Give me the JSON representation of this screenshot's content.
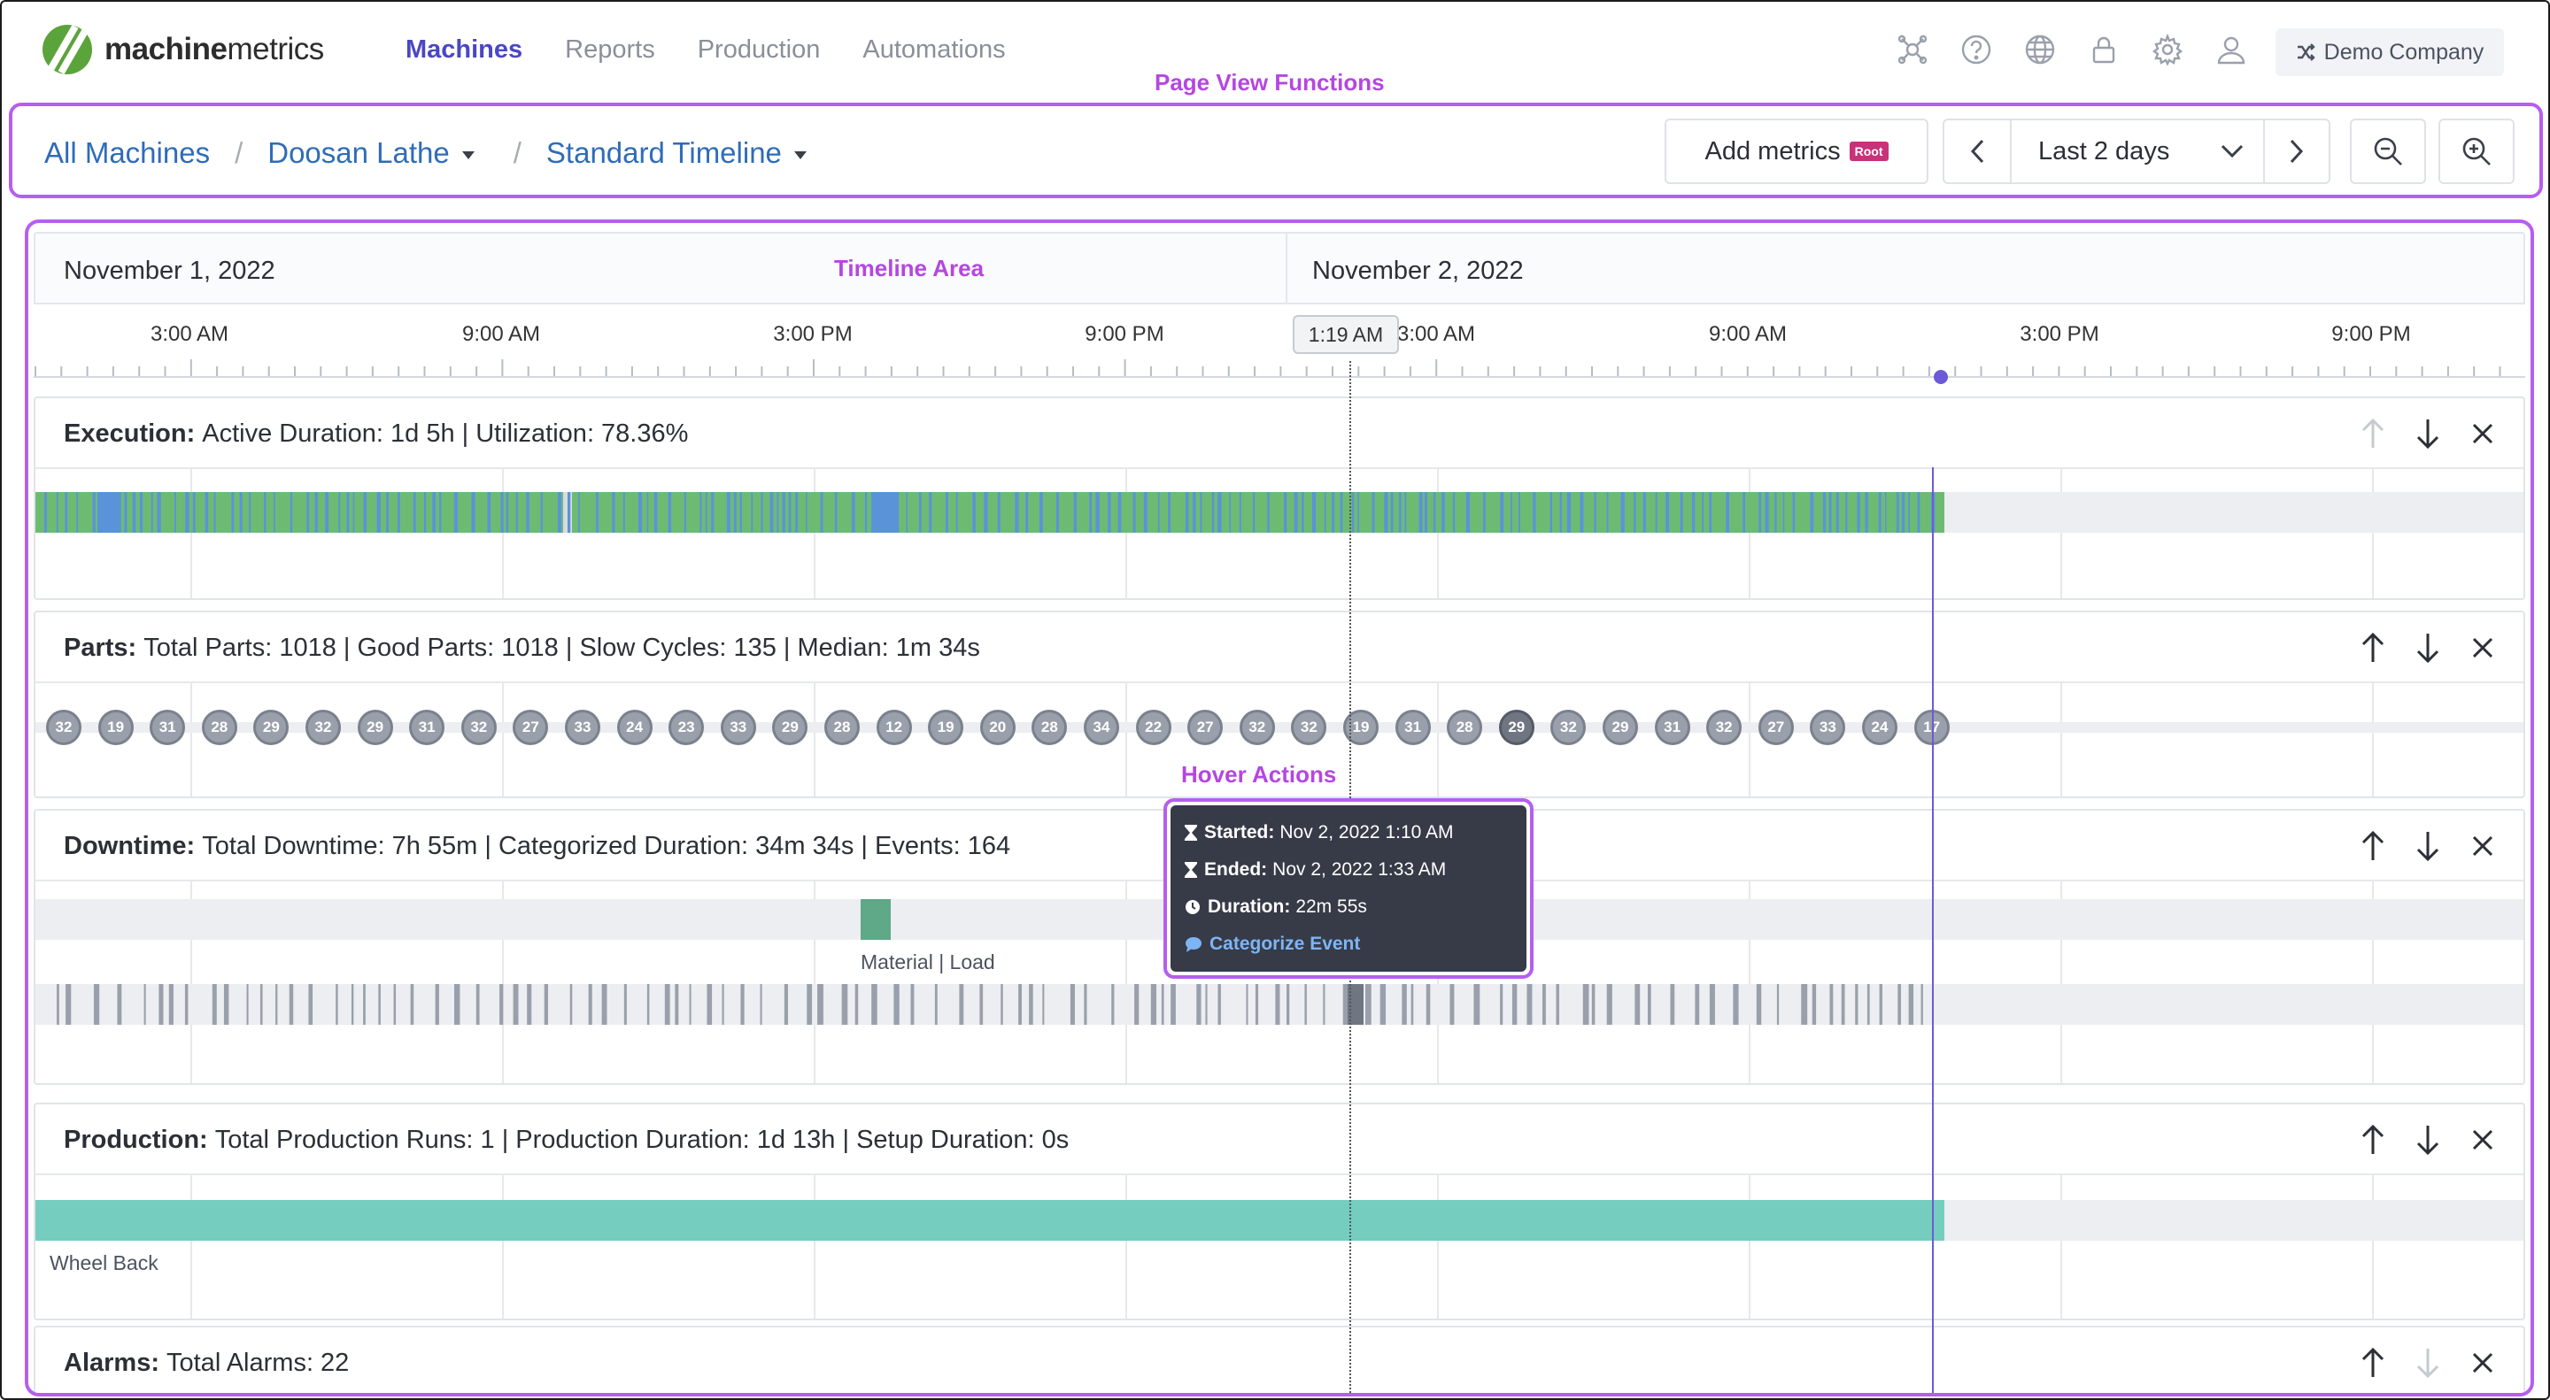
{
  "nav": {
    "logo_bold": "machine",
    "logo_regular": "metrics",
    "links": [
      "Machines",
      "Reports",
      "Production",
      "Automations"
    ],
    "active_link": "Machines",
    "icons": [
      "integrations-icon",
      "help-icon",
      "globe-icon",
      "lock-icon",
      "gear-icon",
      "user-icon"
    ],
    "company": "Demo Company"
  },
  "annotations": {
    "page_view": "Page View Functions",
    "timeline": "Timeline Area",
    "hover": "Hover Actions"
  },
  "breadcrumb": {
    "all": "All Machines",
    "machine": "Doosan Lathe",
    "view": "Standard Timeline",
    "separator": "/"
  },
  "toolbar": {
    "add_metrics": "Add metrics",
    "root_badge": "Root",
    "range": "Last 2 days"
  },
  "timeline": {
    "date1": "November 1, 2022",
    "date2": "November 2, 2022",
    "ticks": [
      "3:00 AM",
      "9:00 AM",
      "3:00 PM",
      "9:00 PM",
      "3:00 AM",
      "9:00 AM",
      "3:00 PM",
      "9:00 PM"
    ],
    "now_label": "1:19 AM"
  },
  "panels": {
    "execution": {
      "label": "Execution:",
      "stats": "Active Duration: 1d 5h  |  Utilization: 78.36%"
    },
    "parts": {
      "label": "Parts:",
      "stats": "Total Parts: 1018  |  Good Parts: 1018  |  Slow Cycles: 135  |  Median: 1m 34s",
      "bubbles": [
        "32",
        "19",
        "31",
        "28",
        "29",
        "32",
        "29",
        "31",
        "32",
        "27",
        "33",
        "24",
        "23",
        "33",
        "29",
        "28",
        "12",
        "19",
        "20",
        "28",
        "34",
        "22",
        "27",
        "32",
        "32",
        "19",
        "31",
        "28",
        "29",
        "32",
        "29",
        "31",
        "32",
        "27",
        "33",
        "24",
        "17"
      ]
    },
    "downtime": {
      "label": "Downtime:",
      "stats": "Total Downtime: 7h 55m  |  Categorized Duration: 34m 34s  |  Events: 164",
      "category_label": "Material | Load"
    },
    "production": {
      "label": "Production:",
      "stats": "Total Production Runs: 1  |  Production Duration: 1d 13h  |  Setup Duration: 0s",
      "run_label": "Wheel Back"
    },
    "alarms": {
      "label": "Alarms:",
      "stats": "Total Alarms: 22"
    }
  },
  "tooltip": {
    "started_label": "Started:",
    "started": "Nov 2, 2022 1:10 AM",
    "ended_label": "Ended:",
    "ended": "Nov 2, 2022 1:33 AM",
    "duration_label": "Duration:",
    "duration": "22m 55s",
    "action": "Categorize Event"
  },
  "colors": {
    "accent": "#4a47c4",
    "active_green": "#6dbb73",
    "feed_hold_blue": "#5b93d9",
    "downtime_gray": "#9aa0ab",
    "category_green": "#5fa888",
    "production_teal": "#74cdbf",
    "annotation_purple": "#b65ef0"
  }
}
